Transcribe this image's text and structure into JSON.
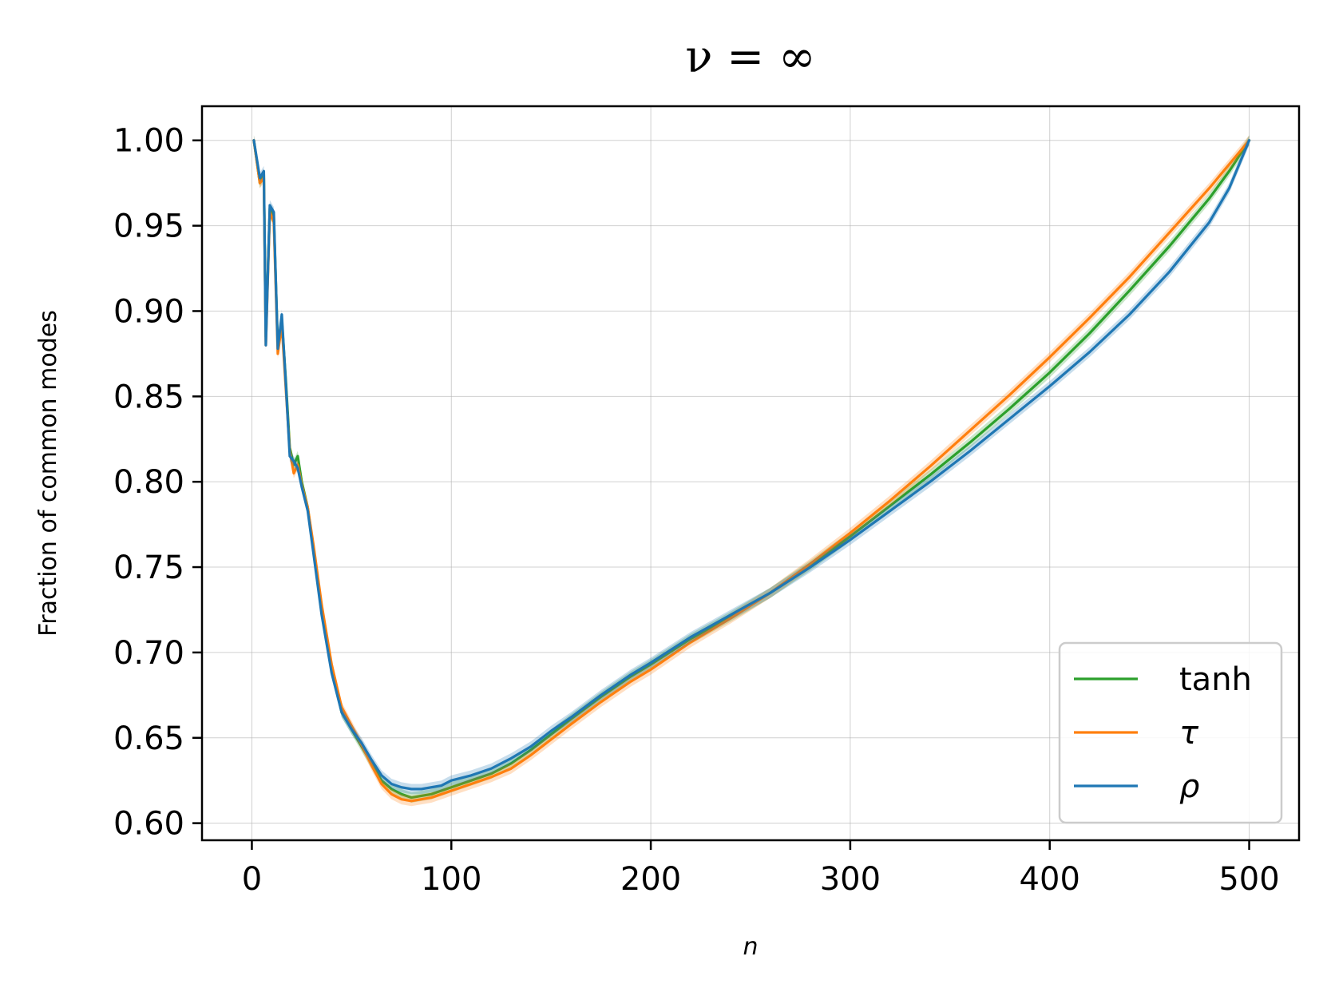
{
  "chart_data": {
    "type": "line",
    "title": "ν = ∞",
    "xlabel": "n",
    "ylabel": "Fraction of common modes",
    "xlim": [
      -25,
      525
    ],
    "ylim": [
      0.59,
      1.02
    ],
    "xticks": [
      0,
      100,
      200,
      300,
      400,
      500
    ],
    "xtick_labels": [
      "0",
      "100",
      "200",
      "300",
      "400",
      "500"
    ],
    "yticks": [
      0.6,
      0.65,
      0.7,
      0.75,
      0.8,
      0.85,
      0.9,
      0.95,
      1.0
    ],
    "ytick_labels": [
      "0.60",
      "0.65",
      "0.70",
      "0.75",
      "0.80",
      "0.85",
      "0.90",
      "0.95",
      "1.00"
    ],
    "grid": true,
    "legend_position": "lower-right",
    "series": [
      {
        "name": "tanh",
        "color": "#2ca02c",
        "x": [
          1,
          4,
          6,
          7,
          9,
          11,
          13,
          15,
          17,
          19,
          21,
          23,
          25,
          28,
          31,
          35,
          40,
          45,
          50,
          55,
          60,
          65,
          70,
          75,
          80,
          85,
          90,
          95,
          100,
          110,
          120,
          130,
          140,
          150,
          160,
          175,
          190,
          200,
          220,
          240,
          260,
          280,
          300,
          320,
          340,
          360,
          380,
          400,
          420,
          440,
          460,
          480,
          490,
          500
        ],
        "y": [
          1.0,
          0.975,
          0.98,
          0.885,
          0.96,
          0.955,
          0.88,
          0.895,
          0.86,
          0.82,
          0.81,
          0.815,
          0.8,
          0.785,
          0.76,
          0.725,
          0.69,
          0.665,
          0.655,
          0.645,
          0.635,
          0.625,
          0.62,
          0.617,
          0.615,
          0.616,
          0.617,
          0.619,
          0.621,
          0.625,
          0.629,
          0.635,
          0.643,
          0.652,
          0.661,
          0.674,
          0.686,
          0.693,
          0.708,
          0.721,
          0.735,
          0.751,
          0.768,
          0.786,
          0.804,
          0.823,
          0.843,
          0.864,
          0.887,
          0.912,
          0.938,
          0.966,
          0.982,
          1.0
        ]
      },
      {
        "name": "τ",
        "color": "#ff7f0e",
        "x": [
          1,
          4,
          6,
          7,
          9,
          11,
          13,
          15,
          17,
          19,
          21,
          23,
          25,
          28,
          31,
          35,
          40,
          45,
          50,
          55,
          60,
          65,
          70,
          75,
          80,
          85,
          90,
          95,
          100,
          110,
          120,
          130,
          140,
          150,
          160,
          175,
          190,
          200,
          220,
          240,
          260,
          280,
          300,
          320,
          340,
          360,
          380,
          400,
          420,
          440,
          460,
          480,
          490,
          500
        ],
        "y": [
          1.0,
          0.975,
          0.978,
          0.88,
          0.958,
          0.952,
          0.875,
          0.892,
          0.855,
          0.818,
          0.805,
          0.81,
          0.798,
          0.785,
          0.762,
          0.728,
          0.693,
          0.668,
          0.657,
          0.646,
          0.634,
          0.623,
          0.617,
          0.614,
          0.613,
          0.614,
          0.615,
          0.617,
          0.619,
          0.623,
          0.627,
          0.632,
          0.64,
          0.649,
          0.658,
          0.671,
          0.683,
          0.69,
          0.706,
          0.72,
          0.735,
          0.752,
          0.77,
          0.789,
          0.809,
          0.83,
          0.851,
          0.873,
          0.896,
          0.92,
          0.946,
          0.972,
          0.986,
          1.0
        ]
      },
      {
        "name": "ρ",
        "color": "#1f77b4",
        "x": [
          1,
          4,
          6,
          7,
          9,
          11,
          13,
          15,
          17,
          19,
          21,
          23,
          25,
          28,
          31,
          35,
          40,
          45,
          50,
          55,
          60,
          65,
          70,
          75,
          80,
          85,
          90,
          95,
          100,
          110,
          120,
          130,
          140,
          150,
          160,
          175,
          190,
          200,
          220,
          240,
          260,
          280,
          300,
          320,
          340,
          360,
          380,
          400,
          420,
          440,
          460,
          480,
          490,
          500
        ],
        "y": [
          1.0,
          0.978,
          0.982,
          0.88,
          0.962,
          0.958,
          0.878,
          0.898,
          0.858,
          0.815,
          0.812,
          0.808,
          0.797,
          0.783,
          0.757,
          0.722,
          0.688,
          0.665,
          0.655,
          0.647,
          0.637,
          0.628,
          0.623,
          0.621,
          0.62,
          0.62,
          0.621,
          0.622,
          0.625,
          0.628,
          0.632,
          0.638,
          0.645,
          0.654,
          0.662,
          0.675,
          0.687,
          0.694,
          0.709,
          0.722,
          0.735,
          0.75,
          0.766,
          0.783,
          0.8,
          0.818,
          0.837,
          0.856,
          0.876,
          0.898,
          0.923,
          0.952,
          0.972,
          1.0
        ]
      }
    ]
  }
}
